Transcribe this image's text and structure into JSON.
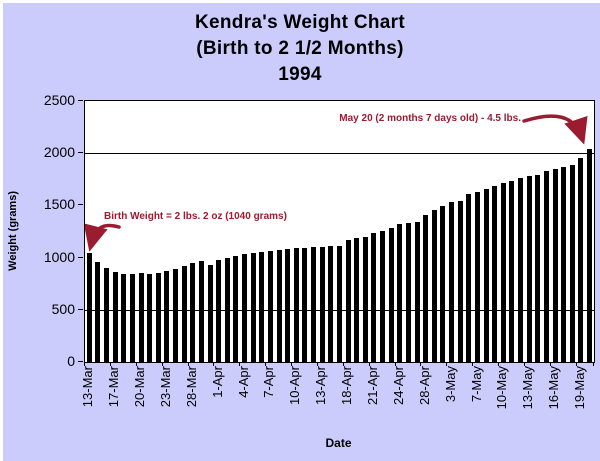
{
  "title": {
    "line1": "Kendra's Weight Chart",
    "line2": "(Birth to 2 1/2 Months)",
    "line3": "1994"
  },
  "y_axis": {
    "title": "Weight (grams)",
    "tick_labels": [
      "2500",
      "2000",
      "1500",
      "1000",
      "500",
      "0"
    ]
  },
  "x_axis": {
    "title": "Date"
  },
  "annotations": {
    "birth_weight": "Birth Weight = 2 lbs. 2 oz (1040 grams)",
    "may_20": "May 20 (2 months 7 days old) - 4.5 lbs."
  },
  "colors": {
    "background": "#CCCCFC",
    "plot_background": "#FFFFFF",
    "bar": "#000000",
    "axis": "#000000",
    "annotation": "#9B1B30"
  },
  "chart_data": {
    "type": "bar",
    "title": "Kendra's Weight Chart (Birth to 2 1/2 Months) 1994",
    "xlabel": "Date",
    "ylabel": "Weight (grams)",
    "ylim": [
      0,
      2500
    ],
    "y_tick_step": 500,
    "grid": "horizontal lines at 500 and 2000 only",
    "gridlines_y": [
      500,
      2000
    ],
    "legend": "none",
    "x_label_interval": 3,
    "x_labels": [
      "13-Mar",
      "17-Mar",
      "20-Mar",
      "23-Mar",
      "28-Mar",
      "1-Apr",
      "4-Apr",
      "7-Apr",
      "10-Apr",
      "13-Apr",
      "18-Apr",
      "21-Apr",
      "24-Apr",
      "28-Apr",
      "3-May",
      "7-May",
      "10-May",
      "13-May",
      "16-May",
      "19-May"
    ],
    "values": [
      1040,
      960,
      900,
      865,
      845,
      840,
      850,
      845,
      855,
      870,
      890,
      915,
      945,
      965,
      930,
      980,
      1000,
      1015,
      1030,
      1040,
      1050,
      1060,
      1070,
      1080,
      1090,
      1095,
      1100,
      1105,
      1110,
      1115,
      1165,
      1190,
      1200,
      1240,
      1255,
      1280,
      1320,
      1335,
      1345,
      1405,
      1455,
      1495,
      1535,
      1545,
      1610,
      1630,
      1655,
      1685,
      1715,
      1730,
      1760,
      1780,
      1795,
      1825,
      1845,
      1865,
      1890,
      1955,
      2045
    ],
    "annotations": [
      {
        "text": "Birth Weight = 2 lbs. 2 oz (1040 grams)",
        "points_to": "first bar (13-Mar)",
        "value_grams": 1040
      },
      {
        "text": "May 20 (2 months 7 days old) - 4.5 lbs.",
        "points_to": "last bar",
        "value_lbs": 4.5
      }
    ]
  }
}
